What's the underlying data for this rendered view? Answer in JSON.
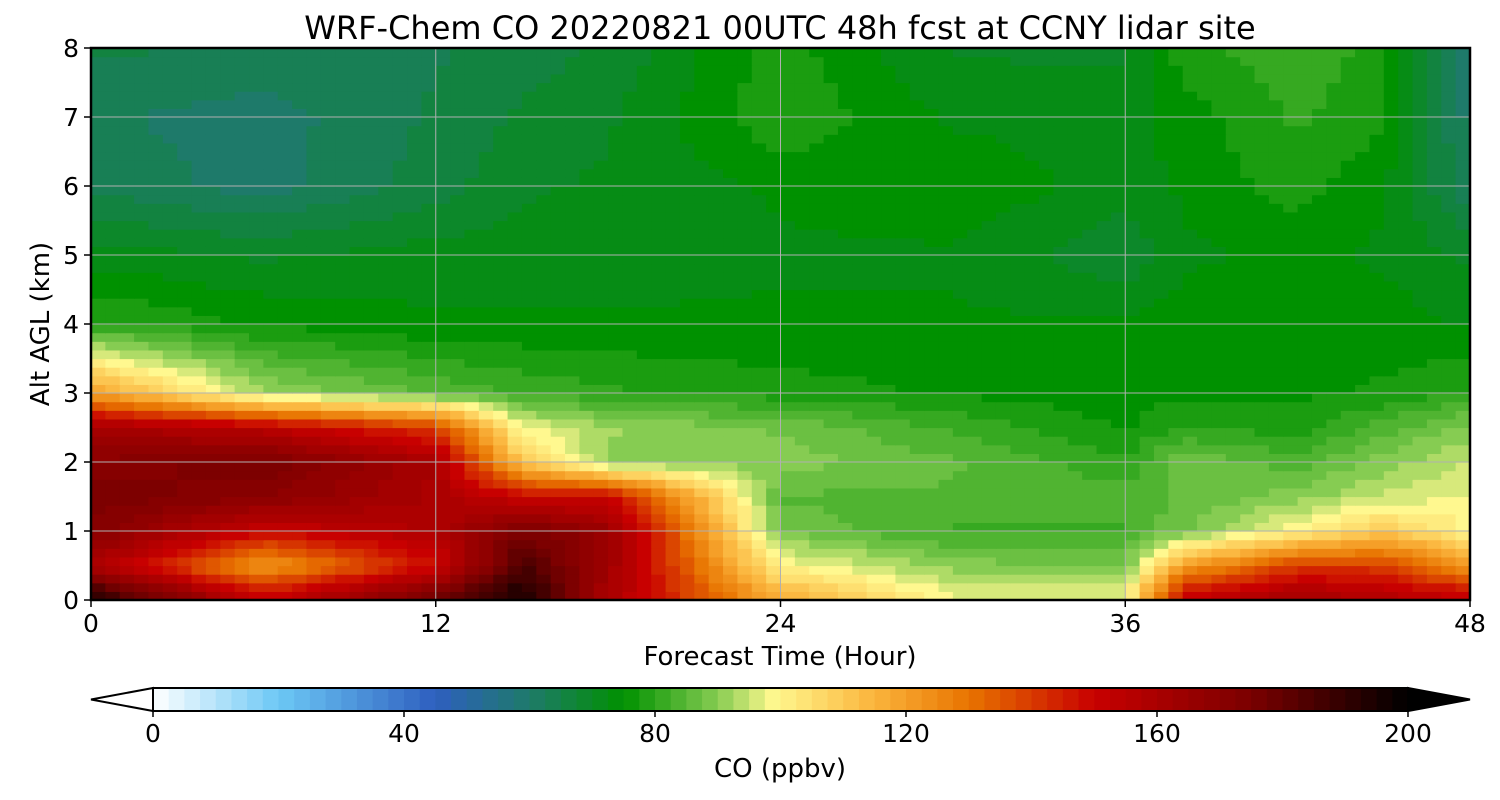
{
  "chart_data": {
    "type": "heatmap",
    "title": "WRF-Chem CO  20220821 00UTC 48h fcst at CCNY lidar site",
    "xlabel": "Forecast Time (Hour)",
    "ylabel": "Alt AGL (km)",
    "xlim": [
      0,
      48
    ],
    "ylim": [
      0,
      8
    ],
    "x_ticks": [
      0,
      12,
      24,
      36,
      48
    ],
    "y_ticks": [
      0,
      1,
      2,
      3,
      4,
      5,
      6,
      7,
      8
    ],
    "grid": true,
    "colorbar": {
      "label": "CO  (ppbv)",
      "ticks": [
        0,
        40,
        80,
        120,
        160,
        200
      ],
      "vmin": 0,
      "vmax": 200,
      "extend": "both",
      "colors": [
        {
          "v": 0,
          "c": "#ffffff"
        },
        {
          "v": 20,
          "c": "#6cc8f5"
        },
        {
          "v": 45,
          "c": "#2e5fbf"
        },
        {
          "v": 60,
          "c": "#1e7a6a"
        },
        {
          "v": 75,
          "c": "#009100"
        },
        {
          "v": 90,
          "c": "#86cc52"
        },
        {
          "v": 99,
          "c": "#fff88f"
        },
        {
          "v": 115,
          "c": "#fbb43c"
        },
        {
          "v": 130,
          "c": "#e87400"
        },
        {
          "v": 150,
          "c": "#c80000"
        },
        {
          "v": 175,
          "c": "#7a0000"
        },
        {
          "v": 200,
          "c": "#000000"
        }
      ]
    },
    "x_hours": [
      0,
      6,
      12,
      15,
      18,
      24,
      30,
      36,
      38,
      42,
      45,
      48
    ],
    "altitudes_km": [
      0.1,
      0.5,
      1.0,
      1.5,
      2.0,
      2.5,
      3.0,
      4.0,
      5.0,
      6.0,
      7.0,
      8.0
    ],
    "values": [
      [
        190,
        148,
        175,
        195,
        160,
        115,
        97,
        97,
        148,
        160,
        155,
        150
      ],
      [
        160,
        120,
        148,
        185,
        163,
        100,
        90,
        88,
        120,
        140,
        140,
        120
      ],
      [
        172,
        150,
        158,
        175,
        165,
        88,
        82,
        82,
        88,
        100,
        110,
        100
      ],
      [
        175,
        170,
        160,
        150,
        150,
        85,
        85,
        84,
        86,
        90,
        95,
        98
      ],
      [
        170,
        175,
        160,
        110,
        90,
        90,
        86,
        80,
        88,
        84,
        90,
        95
      ],
      [
        162,
        155,
        140,
        98,
        92,
        88,
        82,
        76,
        80,
        78,
        84,
        90
      ],
      [
        120,
        92,
        85,
        82,
        80,
        78,
        76,
        75,
        76,
        76,
        77,
        80
      ],
      [
        80,
        76,
        74,
        74,
        74,
        74,
        74,
        74,
        75,
        75,
        75,
        73
      ],
      [
        72,
        70,
        72,
        72,
        72,
        73,
        73,
        68,
        73,
        74,
        73,
        70
      ],
      [
        64,
        60,
        66,
        70,
        71,
        74,
        76,
        72,
        74,
        78,
        74,
        62
      ],
      [
        62,
        60,
        65,
        68,
        70,
        79,
        73,
        72,
        75,
        80,
        77,
        60
      ],
      [
        65,
        64,
        64,
        66,
        68,
        78,
        70,
        70,
        78,
        82,
        78,
        58
      ]
    ]
  }
}
